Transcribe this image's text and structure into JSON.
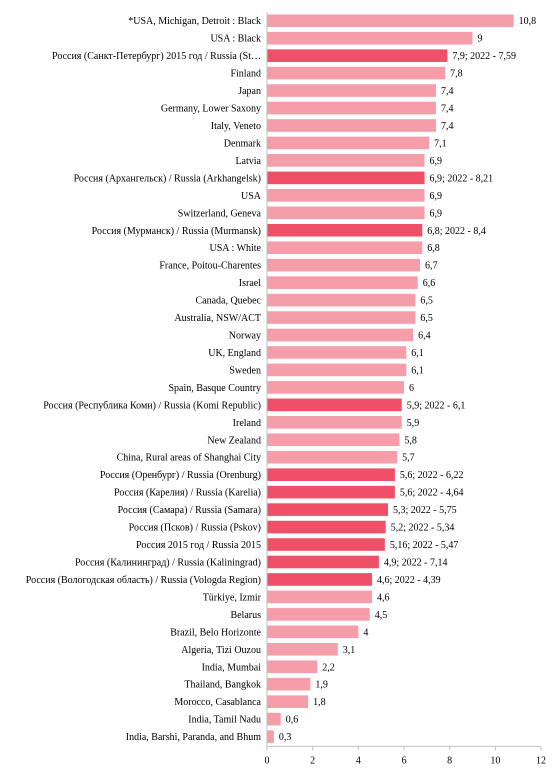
{
  "chart_data": {
    "type": "bar",
    "orientation": "horizontal",
    "xlim": [
      0,
      12
    ],
    "x_ticks": [
      "0",
      "2",
      "4",
      "6",
      "8",
      "10",
      "12"
    ],
    "grid": false,
    "colors": {
      "standard": "#f59ea9",
      "russia": "#ee5068"
    },
    "categories": [
      "*USA, Michigan, Detroit : Black",
      "USA : Black",
      "Россия (Санкт-Петербург) 2015 год / Russia (St…",
      "Finland",
      "Japan",
      "Germany, Lower Saxony",
      "Italy, Veneto",
      "Denmark",
      "Latvia",
      "Россия (Архангельск) / Russia (Arkhangelsk)",
      "USA",
      "Switzerland, Geneva",
      "Россия (Мурманск) / Russia (Murmansk)",
      "USA : White",
      "France, Poitou-Charentes",
      "Israel",
      "Canada, Quebec",
      "Australia, NSW/ACT",
      "Norway",
      "UK, England",
      "Sweden",
      "Spain, Basque Country",
      "Россия (Республика Коми) / Russia (Komi Republic)",
      "Ireland",
      "New Zealand",
      "China, Rural areas of Shanghai City",
      "Россия (Оренбург) / Russia (Orenburg)",
      "Россия (Карелия) / Russia (Karelia)",
      "Россия (Самара) / Russia (Samara)",
      "Россия (Псков) / Russia (Pskov)",
      "Россия 2015 год / Russia 2015",
      "Россия (Калининград) / Russia (Kaliningrad)",
      "Россия (Вологодская область) / Russia (Vologda Region)",
      "Türkiye, Izmir",
      "Belarus",
      "Brazil, Belo Horizonte",
      "Algeria, Tizi Ouzou",
      "India, Mumbai",
      "Thailand, Bangkok",
      "Morocco, Casablanca",
      "India, Tamil Nadu",
      "India, Barshi, Paranda, and Bhum"
    ],
    "values": [
      10.8,
      9,
      7.9,
      7.8,
      7.4,
      7.4,
      7.4,
      7.1,
      6.9,
      6.9,
      6.9,
      6.9,
      6.8,
      6.8,
      6.7,
      6.6,
      6.5,
      6.5,
      6.4,
      6.1,
      6.1,
      6,
      5.9,
      5.9,
      5.8,
      5.7,
      5.6,
      5.6,
      5.3,
      5.2,
      5.16,
      4.9,
      4.6,
      4.6,
      4.5,
      4,
      3.1,
      2.2,
      1.9,
      1.8,
      0.6,
      0.3
    ],
    "value_labels": [
      "10,8",
      "9",
      "7,9; 2022 - 7,59",
      "7,8",
      "7,4",
      "7,4",
      "7,4",
      "7,1",
      "6,9",
      "6,9; 2022 - 8,21",
      "6,9",
      "6,9",
      "6,8; 2022 - 8,4",
      "6,8",
      "6,7",
      "6,6",
      "6,5",
      "6,5",
      "6,4",
      "6,1",
      "6,1",
      "6",
      "5,9; 2022 - 6,1",
      "5,9",
      "5,8",
      "5,7",
      "5,6; 2022 - 6,22",
      "5,6; 2022 - 4,64",
      "5,3; 2022 - 5,75",
      "5,2; 2022 - 5,34",
      "5,16; 2022 - 5,47",
      "4,9; 2022 - 7,14",
      "4,6; 2022 - 4,39",
      "4,6",
      "4,5",
      "4",
      "3,1",
      "2,2",
      "1,9",
      "1,8",
      "0,6",
      "0,3"
    ],
    "highlight": [
      false,
      false,
      true,
      false,
      false,
      false,
      false,
      false,
      false,
      true,
      false,
      false,
      true,
      false,
      false,
      false,
      false,
      false,
      false,
      false,
      false,
      false,
      true,
      false,
      false,
      false,
      true,
      true,
      true,
      true,
      true,
      true,
      true,
      false,
      false,
      false,
      false,
      false,
      false,
      false,
      false,
      false
    ]
  }
}
